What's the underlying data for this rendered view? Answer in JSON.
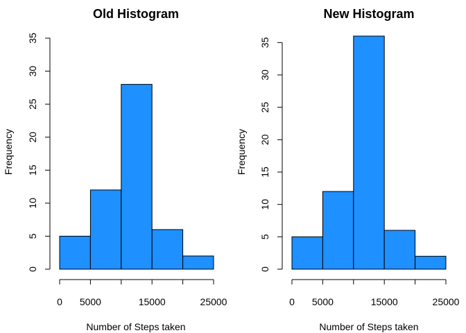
{
  "chart_data": [
    {
      "type": "bar",
      "title": "Old Histogram",
      "xlabel": "Number of Steps taken",
      "ylabel": "Frequency",
      "bins": [
        [
          0,
          5000
        ],
        [
          5000,
          10000
        ],
        [
          10000,
          15000
        ],
        [
          15000,
          20000
        ],
        [
          20000,
          25000
        ]
      ],
      "values": [
        5,
        12,
        28,
        6,
        2
      ],
      "xlim": [
        0,
        25000
      ],
      "ylim": [
        0,
        35
      ],
      "xticks": [
        0,
        5000,
        10000,
        15000,
        20000,
        25000
      ],
      "xtick_labels": [
        "0",
        "5000",
        "",
        "15000",
        "",
        "25000"
      ],
      "yticks": [
        0,
        5,
        10,
        15,
        20,
        25,
        30,
        35
      ],
      "ytick_labels": [
        "0",
        "5",
        "10",
        "15",
        "20",
        "25",
        "30",
        "35"
      ],
      "bar_color": "#1E90FF"
    },
    {
      "type": "bar",
      "title": "New Histogram",
      "xlabel": "Number of Steps taken",
      "ylabel": "Frequency",
      "bins": [
        [
          0,
          5000
        ],
        [
          5000,
          10000
        ],
        [
          10000,
          15000
        ],
        [
          15000,
          20000
        ],
        [
          20000,
          25000
        ]
      ],
      "values": [
        5,
        12,
        36,
        6,
        2
      ],
      "xlim": [
        0,
        25000
      ],
      "ylim": [
        0,
        36
      ],
      "xticks": [
        0,
        5000,
        10000,
        15000,
        20000,
        25000
      ],
      "xtick_labels": [
        "0",
        "5000",
        "",
        "15000",
        "",
        "25000"
      ],
      "yticks": [
        0,
        5,
        10,
        15,
        20,
        25,
        30,
        35
      ],
      "ytick_labels": [
        "0",
        "5",
        "10",
        "15",
        "20",
        "25",
        "30",
        "35"
      ],
      "bar_color": "#1E90FF"
    }
  ]
}
